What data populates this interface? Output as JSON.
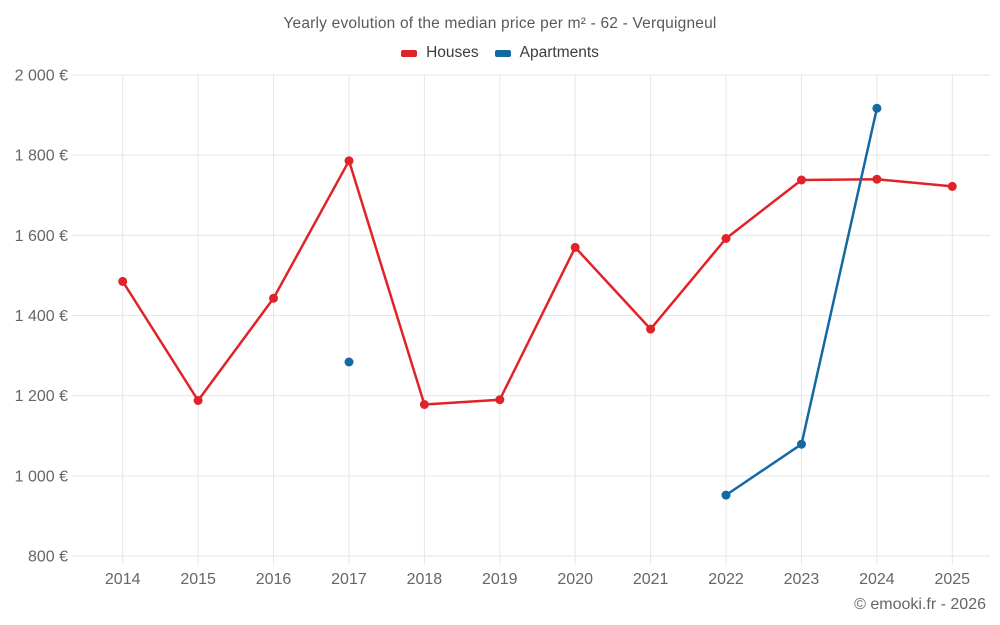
{
  "title": "Yearly evolution of the median price per m² - 62 - Verquigneul",
  "footer": "© emooki.fr - 2026",
  "style": {
    "grid_color": "#e6e6e6",
    "axis_text_color": "#666666",
    "title_color": "#595959",
    "legend_text_color": "#3d3d3d"
  },
  "chart_data": {
    "type": "line",
    "title": "Yearly evolution of the median price per m² - 62 - Verquigneul",
    "categories": [
      "2014",
      "2015",
      "2016",
      "2017",
      "2018",
      "2019",
      "2020",
      "2021",
      "2022",
      "2023",
      "2024",
      "2025"
    ],
    "series": [
      {
        "name": "Houses",
        "color": "#e02329",
        "values": [
          1485,
          1188,
          1443,
          1786,
          1178,
          1190,
          1570,
          1366,
          1592,
          1738,
          1740,
          1722
        ]
      },
      {
        "name": "Apartments",
        "color": "#1569a3",
        "values": [
          null,
          null,
          null,
          1284,
          null,
          null,
          null,
          null,
          952,
          1079,
          1917,
          null
        ]
      }
    ],
    "ylim": [
      800,
      2000
    ],
    "y_ticks": [
      {
        "value": 800,
        "label": "800 €"
      },
      {
        "value": 1000,
        "label": "1 000 €"
      },
      {
        "value": 1200,
        "label": "1 200 €"
      },
      {
        "value": 1400,
        "label": "1 400 €"
      },
      {
        "value": 1600,
        "label": "1 600 €"
      },
      {
        "value": 1800,
        "label": "1 800 €"
      },
      {
        "value": 2000,
        "label": "2 000 €"
      }
    ],
    "xlabel": "",
    "ylabel": "",
    "grid": true,
    "legend_position": "top"
  }
}
